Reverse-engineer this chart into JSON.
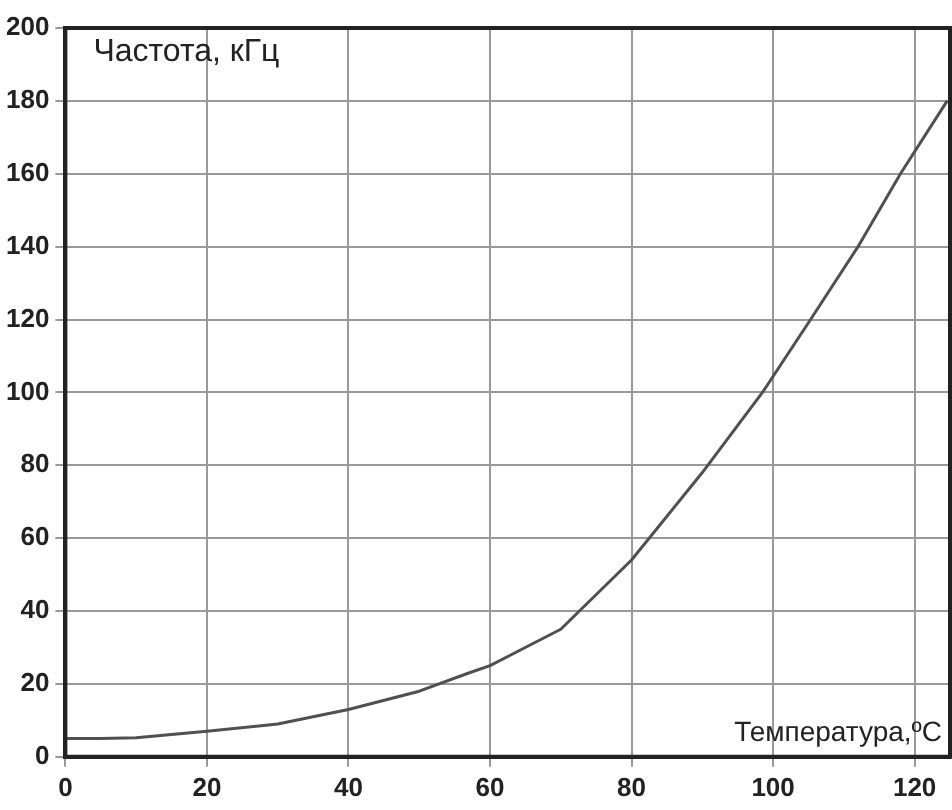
{
  "chart_data": {
    "type": "line",
    "title": "Частота, кГц",
    "xlabel": "Температура,ºС",
    "x": [
      0,
      5,
      10,
      20,
      30,
      40,
      50,
      57,
      60,
      70,
      80,
      90,
      98.5,
      105.3,
      112,
      118,
      124.6
    ],
    "series": [
      {
        "color": "#505050",
        "values": [
          5,
          5,
          5.2,
          7,
          9,
          13,
          18,
          23,
          25,
          35,
          54,
          78,
          100,
          120,
          140,
          160,
          180
        ]
      }
    ],
    "xlim": [
      0,
      125
    ],
    "xticks": [
      0,
      20,
      40,
      60,
      80,
      100,
      120
    ],
    "ylim": [
      0,
      200
    ],
    "yticks": [
      0,
      20,
      40,
      60,
      80,
      100,
      120,
      140,
      160,
      180,
      200
    ],
    "grid": true,
    "legend": false,
    "marker": "none",
    "line_style": "solid"
  }
}
